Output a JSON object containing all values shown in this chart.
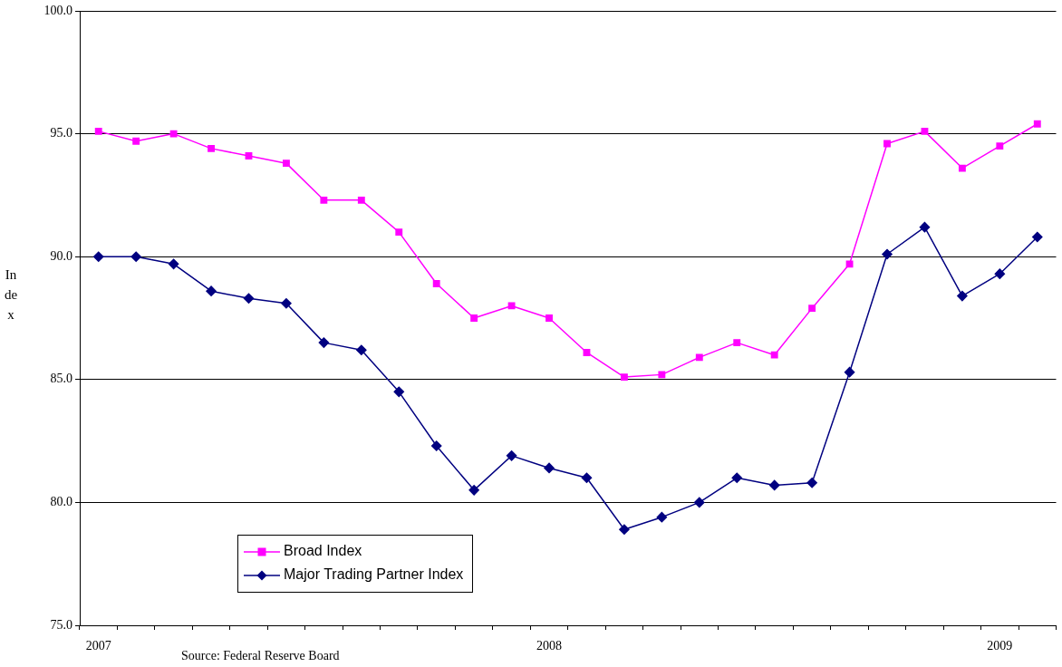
{
  "chart_data": {
    "type": "line",
    "ylabel": "Index",
    "annotations": [
      "Source: Federal Reserve Board"
    ],
    "categories": [
      "2007",
      null,
      null,
      null,
      null,
      null,
      null,
      null,
      null,
      null,
      null,
      null,
      "2008",
      null,
      null,
      null,
      null,
      null,
      null,
      null,
      null,
      null,
      null,
      null,
      "2009",
      null
    ],
    "series": [
      {
        "name": "Broad Index",
        "color": "#ff00ff",
        "marker": "square",
        "values": [
          95.1,
          94.7,
          95.0,
          94.4,
          94.1,
          93.8,
          92.3,
          92.3,
          91.0,
          88.9,
          87.5,
          88.0,
          87.5,
          86.1,
          85.1,
          85.2,
          85.9,
          86.5,
          86.0,
          87.9,
          89.7,
          94.6,
          95.1,
          93.6,
          94.5,
          95.4
        ]
      },
      {
        "name": "Major Trading Partner Index",
        "color": "#000080",
        "marker": "diamond",
        "values": [
          90.0,
          90.0,
          89.7,
          88.6,
          88.3,
          88.1,
          86.5,
          86.2,
          84.5,
          82.3,
          80.5,
          81.9,
          81.4,
          81.0,
          78.9,
          79.4,
          80.0,
          81.0,
          80.7,
          80.8,
          85.3,
          90.1,
          91.2,
          88.4,
          89.3,
          90.8
        ]
      }
    ],
    "ylim": [
      75,
      100
    ],
    "yticks": [
      {
        "value": 75,
        "label": "75.0"
      },
      {
        "value": 80,
        "label": "80.0"
      },
      {
        "value": 85,
        "label": "85.0"
      },
      {
        "value": 90,
        "label": "90.0"
      },
      {
        "value": 95,
        "label": "95.0"
      },
      {
        "value": 100,
        "label": "100.0"
      }
    ],
    "grid": "y",
    "legend": "bottom left"
  }
}
